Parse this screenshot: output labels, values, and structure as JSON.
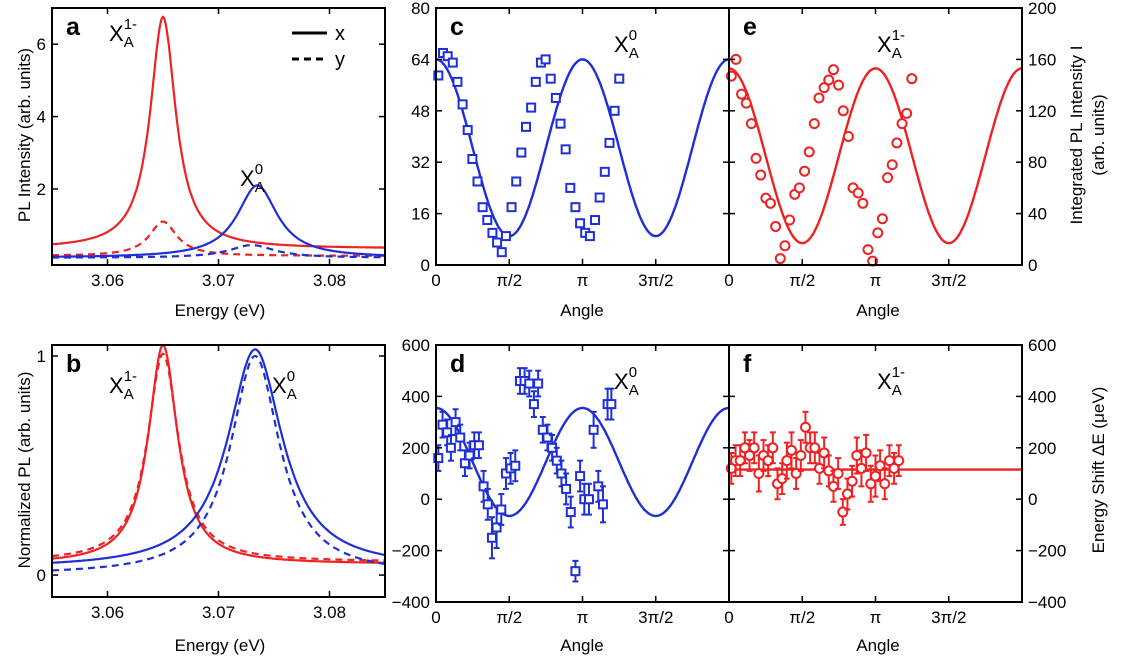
{
  "colors": {
    "red": "#ee2222",
    "blue": "#1f2fd6",
    "axis": "#000000"
  },
  "labels": {
    "ylabel_a": "PL Intensity (arb. units)",
    "ylabel_b": "Normalized PL (arb. units)",
    "xlabel_energy": "Energy (eV)",
    "xlabel_angle": "Angle",
    "ylabel_right_top_1": "Integrated PL Intensity I",
    "ylabel_right_top_2": "(arb. units)",
    "ylabel_right_bottom": "Energy Shift ΔE (μeV)",
    "legend_x": "x",
    "legend_y": "y",
    "exciton_charged_base": "X",
    "exciton_charged_sub": "A",
    "exciton_charged_sup": "1-",
    "exciton_neutral_base": "X",
    "exciton_neutral_sub": "A",
    "exciton_neutral_sup": "0"
  },
  "chart_data": [
    {
      "panel": "a",
      "type": "line",
      "xlim": [
        3.055,
        3.085
      ],
      "ylim": [
        -0.1,
        7.0
      ],
      "xticks": [
        "3.06",
        "3.07",
        "3.08"
      ],
      "yticks": [
        "2",
        "4",
        "6"
      ],
      "legend": "top-right",
      "series": [
        {
          "name": "x",
          "color": "red",
          "dash": false,
          "x0": 3.065,
          "amp": 6.4,
          "width": 0.0014,
          "base": 0.35
        },
        {
          "name": "y",
          "color": "red",
          "dash": true,
          "x0": 3.065,
          "amp": 0.95,
          "width": 0.0015,
          "base": 0.15
        },
        {
          "name": "x",
          "color": "blue",
          "dash": false,
          "x0": 3.0735,
          "amp": 2.0,
          "width": 0.0022,
          "base": 0.1
        },
        {
          "name": "y",
          "color": "blue",
          "dash": true,
          "x0": 3.073,
          "amp": 0.35,
          "width": 0.0025,
          "base": 0.1
        }
      ]
    },
    {
      "panel": "b",
      "type": "line",
      "xlim": [
        3.055,
        3.085
      ],
      "ylim": [
        -0.1,
        1.05
      ],
      "xticks": [
        "3.06",
        "3.07",
        "3.08"
      ],
      "yticks": [
        "0",
        "1"
      ],
      "series": [
        {
          "name": "x",
          "color": "red",
          "dash": false,
          "x0": 3.065,
          "amp": 1.0,
          "width": 0.0016,
          "base": 0.05
        },
        {
          "name": "y",
          "color": "red",
          "dash": true,
          "x0": 3.065,
          "amp": 0.95,
          "width": 0.0017,
          "base": 0.06
        },
        {
          "name": "x",
          "color": "blue",
          "dash": false,
          "x0": 3.0733,
          "amp": 1.0,
          "width": 0.003,
          "base": 0.03
        },
        {
          "name": "y",
          "color": "blue",
          "dash": true,
          "x0": 3.0733,
          "amp": 1.0,
          "width": 0.0027,
          "base": 0.0
        }
      ]
    },
    {
      "panel": "c",
      "type": "scatter",
      "xlim": [
        0,
        6.283
      ],
      "ylim": [
        0,
        80
      ],
      "xticks": [
        "0",
        "π/2",
        "π",
        "3π/2"
      ],
      "yticks": [
        "0",
        "16",
        "32",
        "48",
        "64",
        "80"
      ],
      "color": "blue",
      "marker": "square",
      "fit": {
        "offset": 36.5,
        "amp": 27.5,
        "phase": 0.0
      },
      "points": [
        [
          0.05,
          59
        ],
        [
          0.15,
          66
        ],
        [
          0.25,
          65
        ],
        [
          0.36,
          63
        ],
        [
          0.46,
          57
        ],
        [
          0.57,
          50
        ],
        [
          0.68,
          42
        ],
        [
          0.78,
          33
        ],
        [
          0.89,
          26
        ],
        [
          1.0,
          18
        ],
        [
          1.1,
          14
        ],
        [
          1.21,
          10
        ],
        [
          1.31,
          7
        ],
        [
          1.41,
          4
        ],
        [
          1.5,
          9
        ],
        [
          1.62,
          18
        ],
        [
          1.72,
          26
        ],
        [
          1.83,
          35
        ],
        [
          1.93,
          43
        ],
        [
          2.04,
          49
        ],
        [
          2.14,
          57
        ],
        [
          2.25,
          63
        ],
        [
          2.35,
          64
        ],
        [
          2.46,
          58
        ],
        [
          2.57,
          52
        ],
        [
          2.67,
          44
        ],
        [
          2.78,
          36
        ],
        [
          2.88,
          24
        ],
        [
          2.99,
          18
        ],
        [
          3.09,
          13
        ],
        [
          3.2,
          10
        ],
        [
          3.3,
          9
        ],
        [
          3.41,
          14
        ],
        [
          3.51,
          21
        ],
        [
          3.62,
          29
        ],
        [
          3.72,
          38
        ],
        [
          3.83,
          48
        ],
        [
          3.93,
          58
        ]
      ]
    },
    {
      "panel": "e",
      "type": "scatter",
      "xlim": [
        0,
        6.283
      ],
      "ylim": [
        0,
        200
      ],
      "xticks": [
        "0",
        "π/2",
        "π",
        "3π/2"
      ],
      "yticks": [
        "0",
        "40",
        "80",
        "120",
        "160",
        "200"
      ],
      "color": "red",
      "marker": "circle",
      "fit": {
        "offset": 85,
        "amp": 68,
        "phase": 0.0
      },
      "points": [
        [
          0.05,
          147
        ],
        [
          0.15,
          160
        ],
        [
          0.27,
          133
        ],
        [
          0.37,
          126
        ],
        [
          0.48,
          110
        ],
        [
          0.58,
          83
        ],
        [
          0.68,
          70
        ],
        [
          0.79,
          52
        ],
        [
          0.89,
          48
        ],
        [
          1.0,
          30
        ],
        [
          1.1,
          5
        ],
        [
          1.2,
          15
        ],
        [
          1.3,
          35
        ],
        [
          1.41,
          55
        ],
        [
          1.51,
          60
        ],
        [
          1.62,
          73
        ],
        [
          1.72,
          88
        ],
        [
          1.83,
          110
        ],
        [
          1.93,
          130
        ],
        [
          2.04,
          138
        ],
        [
          2.14,
          144
        ],
        [
          2.24,
          152
        ],
        [
          2.35,
          140
        ],
        [
          2.45,
          120
        ],
        [
          2.56,
          100
        ],
        [
          2.66,
          60
        ],
        [
          2.77,
          56
        ],
        [
          2.87,
          48
        ],
        [
          2.98,
          12
        ],
        [
          3.08,
          3
        ],
        [
          3.19,
          25
        ],
        [
          3.29,
          36
        ],
        [
          3.4,
          68
        ],
        [
          3.5,
          78
        ],
        [
          3.6,
          95
        ],
        [
          3.71,
          110
        ],
        [
          3.81,
          118
        ],
        [
          3.92,
          145
        ]
      ]
    },
    {
      "panel": "d",
      "type": "scatter",
      "xlim": [
        0,
        6.283
      ],
      "ylim": [
        -400,
        600
      ],
      "xticks": [
        "0",
        "π/2",
        "π",
        "3π/2"
      ],
      "yticks": [
        "-400",
        "-200",
        "0",
        "200",
        "400",
        "600"
      ],
      "color": "blue",
      "marker": "square",
      "fit": {
        "offset": 145,
        "amp": 210,
        "phase": 0.0
      },
      "points": [
        [
          0.05,
          160,
          50
        ],
        [
          0.14,
          290,
          50
        ],
        [
          0.24,
          260,
          50
        ],
        [
          0.32,
          200,
          50
        ],
        [
          0.42,
          300,
          50
        ],
        [
          0.52,
          240,
          50
        ],
        [
          0.62,
          140,
          50
        ],
        [
          0.72,
          170,
          50
        ],
        [
          0.82,
          210,
          50
        ],
        [
          0.92,
          210,
          50
        ],
        [
          1.02,
          50,
          60
        ],
        [
          1.11,
          -20,
          60
        ],
        [
          1.2,
          -150,
          80
        ],
        [
          1.3,
          -110,
          80
        ],
        [
          1.4,
          -40,
          60
        ],
        [
          1.5,
          100,
          60
        ],
        [
          1.6,
          120,
          60
        ],
        [
          1.7,
          130,
          60
        ],
        [
          1.8,
          460,
          50
        ],
        [
          1.9,
          460,
          50
        ],
        [
          2.0,
          450,
          50
        ],
        [
          2.1,
          370,
          50
        ],
        [
          2.19,
          450,
          50
        ],
        [
          2.29,
          270,
          50
        ],
        [
          2.39,
          240,
          50
        ],
        [
          2.49,
          200,
          50
        ],
        [
          2.59,
          150,
          50
        ],
        [
          2.69,
          100,
          50
        ],
        [
          2.79,
          40,
          60
        ],
        [
          2.89,
          -50,
          60
        ],
        [
          2.99,
          -280,
          40
        ],
        [
          3.09,
          90,
          60
        ],
        [
          3.18,
          0,
          60
        ],
        [
          3.28,
          0,
          60
        ],
        [
          3.38,
          270,
          70
        ],
        [
          3.48,
          50,
          60
        ],
        [
          3.58,
          -20,
          70
        ],
        [
          3.68,
          370,
          60
        ],
        [
          3.76,
          370,
          60
        ]
      ]
    },
    {
      "panel": "f",
      "type": "scatter",
      "xlim": [
        0,
        6.283
      ],
      "ylim": [
        -400,
        600
      ],
      "xticks": [
        "0",
        "π/2",
        "π",
        "3π/2"
      ],
      "yticks": [
        "-400",
        "-200",
        "0",
        "200",
        "400",
        "600"
      ],
      "color": "red",
      "marker": "circle",
      "fit": {
        "offset": 115,
        "amp": 0,
        "phase": 0.0
      },
      "points": [
        [
          0.05,
          120,
          60
        ],
        [
          0.14,
          150,
          60
        ],
        [
          0.24,
          150,
          60
        ],
        [
          0.34,
          200,
          60
        ],
        [
          0.44,
          170,
          60
        ],
        [
          0.54,
          200,
          60
        ],
        [
          0.64,
          100,
          70
        ],
        [
          0.74,
          170,
          60
        ],
        [
          0.84,
          150,
          60
        ],
        [
          0.94,
          200,
          60
        ],
        [
          1.04,
          60,
          60
        ],
        [
          1.14,
          80,
          60
        ],
        [
          1.24,
          150,
          70
        ],
        [
          1.34,
          190,
          70
        ],
        [
          1.44,
          100,
          60
        ],
        [
          1.54,
          170,
          60
        ],
        [
          1.64,
          280,
          60
        ],
        [
          1.74,
          200,
          60
        ],
        [
          1.84,
          200,
          60
        ],
        [
          1.94,
          120,
          60
        ],
        [
          2.04,
          180,
          60
        ],
        [
          2.14,
          110,
          60
        ],
        [
          2.24,
          50,
          60
        ],
        [
          2.34,
          100,
          60
        ],
        [
          2.44,
          -50,
          50
        ],
        [
          2.54,
          20,
          60
        ],
        [
          2.64,
          70,
          60
        ],
        [
          2.74,
          170,
          70
        ],
        [
          2.84,
          120,
          70
        ],
        [
          2.94,
          180,
          70
        ],
        [
          3.04,
          60,
          70
        ],
        [
          3.14,
          90,
          80
        ],
        [
          3.24,
          130,
          60
        ],
        [
          3.34,
          60,
          60
        ],
        [
          3.44,
          150,
          60
        ],
        [
          3.54,
          120,
          60
        ],
        [
          3.64,
          150,
          60
        ]
      ]
    }
  ]
}
